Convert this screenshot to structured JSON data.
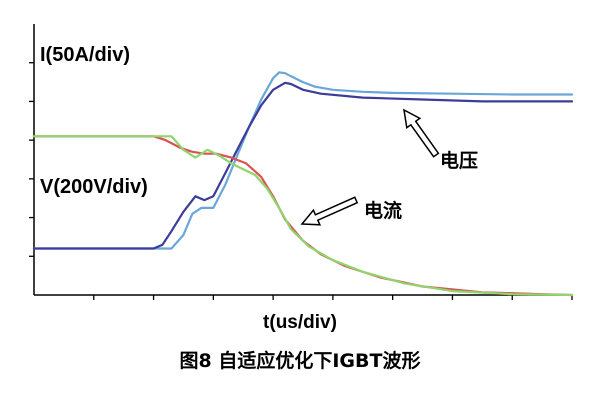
{
  "chart_data": {
    "type": "line",
    "title": "",
    "caption": "图8  自适应优化下IGBT波形",
    "xlabel": "t(us/div)",
    "ylabels": [
      "I(50A/div)",
      "V(200V/div)"
    ],
    "xlim": [
      0,
      9
    ],
    "ylim": [
      0,
      7
    ],
    "grid": false,
    "annotations": [
      {
        "text": "电压",
        "target_series": "电压 (优化)",
        "x": 6.3,
        "y": 5.1
      },
      {
        "text": "电流",
        "target_series": "电流 (优化)",
        "x": 4.3,
        "y": 2.2
      }
    ],
    "series": [
      {
        "name": "",
        "color": "#6aa6d8",
        "x": [
          0,
          1,
          2,
          2.3,
          2.5,
          2.65,
          2.8,
          3.0,
          3.2,
          3.4,
          3.6,
          3.8,
          4.0,
          4.1,
          4.2,
          4.3,
          4.5,
          4.7,
          5.0,
          5.5,
          6.0,
          7.0,
          8.0,
          9.0
        ],
        "y": [
          1.2,
          1.2,
          1.2,
          1.2,
          1.55,
          2.1,
          2.25,
          2.25,
          2.85,
          3.6,
          4.35,
          5.05,
          5.6,
          5.75,
          5.73,
          5.65,
          5.5,
          5.38,
          5.3,
          5.25,
          5.22,
          5.2,
          5.18,
          5.18
        ]
      },
      {
        "name": "",
        "color": "#3c3c9a",
        "x": [
          0,
          1,
          2,
          2.15,
          2.3,
          2.5,
          2.7,
          2.85,
          3.0,
          3.2,
          3.4,
          3.6,
          3.8,
          4.0,
          4.2,
          4.3,
          4.5,
          4.8,
          5.5,
          6.5,
          7.5,
          9.0
        ],
        "y": [
          1.2,
          1.2,
          1.2,
          1.3,
          1.65,
          2.15,
          2.55,
          2.45,
          2.55,
          3.15,
          3.75,
          4.35,
          4.9,
          5.3,
          5.48,
          5.45,
          5.3,
          5.2,
          5.1,
          5.05,
          5.0,
          5.0
        ]
      },
      {
        "name": "",
        "color": "#d9534f",
        "x": [
          0,
          1,
          2,
          2.2,
          2.45,
          2.65,
          2.85,
          3.05,
          3.3,
          3.55,
          3.8,
          4.0,
          4.2,
          4.5,
          4.8,
          5.2,
          5.8,
          6.5,
          7.5,
          8.5,
          9.0
        ],
        "y": [
          4.1,
          4.1,
          4.1,
          4.0,
          3.8,
          3.7,
          3.65,
          3.65,
          3.55,
          3.4,
          3.05,
          2.55,
          1.95,
          1.4,
          1.05,
          0.75,
          0.45,
          0.22,
          0.07,
          0.02,
          0.0
        ]
      },
      {
        "name": "",
        "color": "#8fd46e",
        "x": [
          0,
          1,
          2,
          2.3,
          2.5,
          2.7,
          2.9,
          3.1,
          3.3,
          3.5,
          3.7,
          3.9,
          4.1,
          4.3,
          4.6,
          5.0,
          5.5,
          6.2,
          7.0,
          8.0,
          9.0
        ],
        "y": [
          4.1,
          4.1,
          4.1,
          4.1,
          3.75,
          3.55,
          3.75,
          3.6,
          3.4,
          3.25,
          3.1,
          2.75,
          2.25,
          1.7,
          1.25,
          0.9,
          0.6,
          0.3,
          0.1,
          0.02,
          0.0
        ]
      }
    ],
    "colors": {
      "axes": "#000000",
      "arrow_fill": "#ffffff"
    }
  },
  "labels": {
    "ann_v": "电压",
    "ann_i": "电流"
  }
}
